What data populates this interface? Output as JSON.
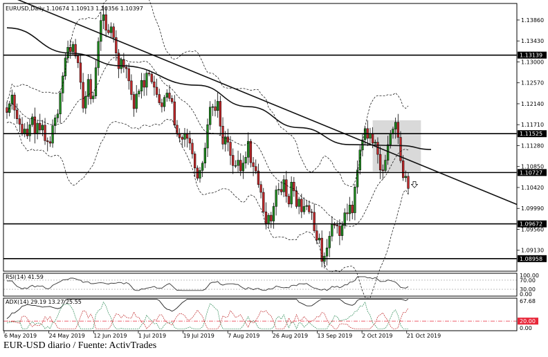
{
  "chart_data": {
    "type": "candlestick",
    "header": "EURUSD,Daily  1.10674 1.10913 1.10356 1.10397",
    "price_axis": {
      "ylim": [
        1.087,
        1.142
      ],
      "ticks": [
        "1.13860",
        "1.13430",
        "1.13000",
        "1.12570",
        "1.12140",
        "1.11710",
        "1.11280",
        "1.10850",
        "1.10420",
        "1.09990",
        "1.09560",
        "1.09130"
      ],
      "highlighted_levels": [
        "1.13139",
        "1.11525",
        "1.10727",
        "1.09672",
        "1.08958"
      ]
    },
    "date_ticks": [
      "6 May 2019",
      "24 May 2019",
      "12 Jun 2019",
      "1 Jul 2019",
      "19 Jul 2019",
      "7 Aug 2019",
      "26 Aug 2019",
      "13 Sep 2019",
      "2 Oct 2019",
      "21 Oct 2019"
    ],
    "closes": [
      1.1196,
      1.1214,
      1.1232,
      1.1201,
      1.1183,
      1.1172,
      1.1153,
      1.1162,
      1.1148,
      1.1171,
      1.1187,
      1.1152,
      1.1174,
      1.116,
      1.117,
      1.1138,
      1.1136,
      1.1133,
      1.1169,
      1.1185,
      1.1193,
      1.1236,
      1.1271,
      1.1308,
      1.133,
      1.1321,
      1.1336,
      1.1312,
      1.1298,
      1.1258,
      1.1205,
      1.1229,
      1.1264,
      1.1224,
      1.123,
      1.1288,
      1.1342,
      1.1385,
      1.1397,
      1.1365,
      1.136,
      1.1372,
      1.135,
      1.1318,
      1.1286,
      1.1305,
      1.1289,
      1.1286,
      1.1261,
      1.1233,
      1.1204,
      1.1234,
      1.124,
      1.1262,
      1.1248,
      1.1277,
      1.1275,
      1.1259,
      1.1248,
      1.1233,
      1.1216,
      1.1208,
      1.1227,
      1.1236,
      1.1225,
      1.1218,
      1.117,
      1.1152,
      1.1145,
      1.1141,
      1.1153,
      1.1143,
      1.1133,
      1.1111,
      1.1082,
      1.1061,
      1.1077,
      1.1092,
      1.1123,
      1.1171,
      1.1207,
      1.1208,
      1.12,
      1.1219,
      1.1168,
      1.1131,
      1.1146,
      1.1135,
      1.1108,
      1.1087,
      1.1087,
      1.1098,
      1.1076,
      1.1092,
      1.1104,
      1.1137,
      1.1093,
      1.1085,
      1.1076,
      1.1048,
      1.1032,
      1.0992,
      1.0968,
      1.0985,
      1.0973,
      1.1003,
      1.1037,
      1.1038,
      1.1033,
      1.1058,
      1.1024,
      1.1008,
      1.1053,
      1.1035,
      1.1003,
      1.1018,
      1.0992,
      1.1003,
      1.1005,
      1.0992,
      1.0991,
      1.0953,
      1.0934,
      1.0938,
      1.089,
      1.0901,
      1.0918,
      1.0942,
      1.0966,
      1.0965,
      1.0963,
      1.0943,
      1.0964,
      1.099,
      1.0988,
      1.1006,
      1.099,
      1.1043,
      1.1078,
      1.1119,
      1.114,
      1.1163,
      1.1143,
      1.1152,
      1.1133,
      1.1135,
      1.111,
      1.1078,
      1.1077,
      1.1098,
      1.113,
      1.1152,
      1.1162,
      1.1176,
      1.1145,
      1.1097,
      1.1062,
      1.1065,
      1.104
    ],
    "sma200_anchors": [
      [
        0,
        1.137
      ],
      [
        25,
        1.1318
      ],
      [
        45,
        1.1292
      ],
      [
        75,
        1.1252
      ],
      [
        95,
        1.1208
      ],
      [
        115,
        1.1165
      ],
      [
        135,
        1.113
      ],
      [
        155,
        1.1128
      ],
      [
        167,
        1.112
      ]
    ],
    "trendline": [
      [
        0,
        1.144
      ],
      [
        167,
        1.108
      ]
    ],
    "box": {
      "x": [
        144,
        163
      ],
      "y": [
        1.1075,
        1.118
      ]
    },
    "rsi": {
      "label": "RSI(14) 41.59",
      "ticks": [
        "100.00",
        "70.00",
        "30.00",
        "0.00"
      ],
      "ylim": [
        0,
        100
      ],
      "value": 41.59
    },
    "adx": {
      "label": "ADX(14) 29.19 13.27 25.55",
      "ticks": [
        "67.68",
        "20.00",
        "0.00"
      ],
      "level": 20.0,
      "level_label": "20.00",
      "ylim": [
        0,
        67.68
      ]
    },
    "colors": {
      "bull": "#1f8a1f",
      "bear": "#c0282a",
      "box": "#d9d9d9",
      "level_label_red": "#e8283a"
    }
  },
  "caption": "EUR-USD diario / Fuente: ActivTrades"
}
